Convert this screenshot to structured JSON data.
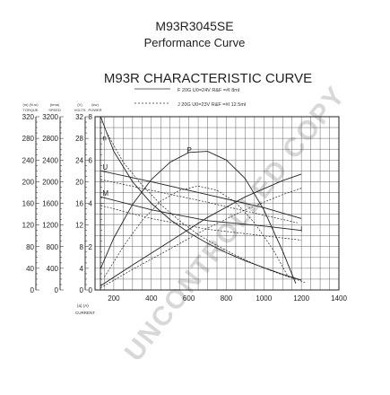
{
  "header": {
    "part_number": "M93R3045SE",
    "subtitle": "Performance Curve"
  },
  "chart_data": {
    "type": "line",
    "title": "M93R CHARACTERISTIC CURVE",
    "legend": [
      {
        "style": "solid",
        "text": "F  20G    U0=24V    R&F  =#I  8mI"
      },
      {
        "style": "dashed",
        "text": "J  20G    U0=23V    R&F  =#I  12.5mI"
      }
    ],
    "x_axis": {
      "label_top": "(a)  (A)",
      "label_bottom": "CURRENT",
      "range": [
        100,
        1400
      ],
      "ticks": [
        200,
        400,
        600,
        800,
        1000,
        1200,
        1400
      ],
      "tick_labels": [
        "200",
        "400",
        "600",
        "800",
        "1000",
        "1200",
        "1400"
      ]
    },
    "right_axis": {
      "range": [
        0,
        8
      ],
      "ticks": [
        0,
        2,
        4,
        6,
        8
      ],
      "tick_labels": [
        "0",
        "2",
        "4",
        "6",
        "8"
      ]
    },
    "left_axes": [
      {
        "id": "torque",
        "header": "(m)  (N.m)",
        "label": "TORQUE",
        "range": [
          0,
          320
        ],
        "ticks": [
          0,
          40,
          80,
          120,
          160,
          200,
          240,
          280,
          320
        ],
        "tick_labels": [
          "0",
          "40",
          "80",
          "120",
          "160",
          "200",
          "240",
          "280",
          "320"
        ]
      },
      {
        "id": "speed",
        "header": "(bma)",
        "label": "SPEED",
        "range": [
          0,
          3200
        ],
        "ticks": [
          0,
          400,
          800,
          1200,
          1600,
          2000,
          2400,
          2800,
          3200
        ],
        "tick_labels": [
          "0",
          "400",
          "800",
          "1200",
          "1600",
          "2000",
          "2400",
          "2800",
          "3200"
        ]
      },
      {
        "id": "volts",
        "header": "(V)",
        "label": "VOLTS",
        "range": [
          0,
          32
        ],
        "ticks": [
          0,
          4,
          8,
          12,
          16,
          20,
          24,
          28,
          32
        ],
        "tick_labels": [
          "0",
          "4",
          "8",
          "12",
          "16",
          "20",
          "24",
          "28",
          "32"
        ]
      },
      {
        "id": "power",
        "header": "(kw)",
        "label": "POWER",
        "range": [
          0,
          32
        ],
        "ticks": [
          0,
          4,
          8,
          12,
          16,
          20,
          24,
          28,
          32
        ],
        "tick_labels": [
          "0",
          "4",
          "8",
          "12",
          "16",
          "20",
          "24",
          "28",
          "32"
        ]
      }
    ],
    "series_labels": [
      {
        "text": "n",
        "x": 140,
        "y": 6.9
      },
      {
        "text": "P",
        "x": 590,
        "y": 6.35
      },
      {
        "text": "U",
        "x": 140,
        "y": 5.55
      },
      {
        "text": "M",
        "x": 140,
        "y": 4.35
      },
      {
        "text": "I",
        "x": 1195,
        "y": 2.7
      }
    ],
    "series": [
      {
        "key": "n",
        "style": "solid",
        "points": [
          [
            130,
            8.0
          ],
          [
            200,
            6.4
          ],
          [
            300,
            5.0
          ],
          [
            400,
            4.0
          ],
          [
            500,
            3.25
          ],
          [
            600,
            2.65
          ],
          [
            700,
            2.15
          ],
          [
            800,
            1.72
          ],
          [
            900,
            1.35
          ],
          [
            1000,
            1.03
          ],
          [
            1100,
            0.72
          ],
          [
            1200,
            0.45
          ]
        ]
      },
      {
        "key": "n",
        "style": "dashed",
        "points": [
          [
            160,
            7.3
          ],
          [
            250,
            5.9
          ],
          [
            350,
            4.85
          ],
          [
            450,
            3.95
          ],
          [
            550,
            3.2
          ],
          [
            650,
            2.55
          ],
          [
            750,
            2.05
          ],
          [
            850,
            1.6
          ],
          [
            950,
            1.2
          ],
          [
            1050,
            0.85
          ],
          [
            1150,
            0.55
          ],
          [
            1220,
            0.35
          ]
        ]
      },
      {
        "key": "P",
        "style": "solid",
        "points": [
          [
            130,
            1.0
          ],
          [
            200,
            2.4
          ],
          [
            300,
            3.95
          ],
          [
            400,
            5.1
          ],
          [
            500,
            5.9
          ],
          [
            600,
            6.35
          ],
          [
            700,
            6.4
          ],
          [
            800,
            6.0
          ],
          [
            900,
            5.15
          ],
          [
            1000,
            3.7
          ],
          [
            1100,
            1.8
          ],
          [
            1170,
            0.3
          ]
        ]
      },
      {
        "key": "P",
        "style": "dashed",
        "points": [
          [
            150,
            0.6
          ],
          [
            250,
            2.0
          ],
          [
            350,
            3.2
          ],
          [
            450,
            4.1
          ],
          [
            550,
            4.6
          ],
          [
            650,
            4.8
          ],
          [
            750,
            4.6
          ],
          [
            850,
            4.05
          ],
          [
            950,
            3.1
          ],
          [
            1050,
            1.85
          ],
          [
            1130,
            0.6
          ]
        ]
      },
      {
        "key": "U",
        "style": "solid",
        "points": [
          [
            130,
            5.5
          ],
          [
            400,
            5.0
          ],
          [
            700,
            4.4
          ],
          [
            1000,
            3.8
          ],
          [
            1200,
            3.3
          ]
        ]
      },
      {
        "key": "U",
        "style": "dashed",
        "points": [
          [
            130,
            5.1
          ],
          [
            400,
            4.6
          ],
          [
            700,
            4.05
          ],
          [
            1000,
            3.45
          ],
          [
            1180,
            3.1
          ]
        ]
      },
      {
        "key": "M",
        "style": "solid",
        "points": [
          [
            130,
            0.2
          ],
          [
            300,
            1.15
          ],
          [
            500,
            2.25
          ],
          [
            700,
            3.35
          ],
          [
            900,
            4.3
          ],
          [
            1100,
            5.05
          ],
          [
            1200,
            5.35
          ]
        ]
      },
      {
        "key": "M",
        "style": "dashed",
        "points": [
          [
            130,
            0.1
          ],
          [
            300,
            0.95
          ],
          [
            500,
            1.9
          ],
          [
            700,
            2.85
          ],
          [
            900,
            3.7
          ],
          [
            1100,
            4.4
          ],
          [
            1200,
            4.7
          ]
        ]
      },
      {
        "key": "I",
        "style": "solid",
        "points": [
          [
            130,
            4.3
          ],
          [
            400,
            3.7
          ],
          [
            700,
            3.2
          ],
          [
            1000,
            2.95
          ],
          [
            1200,
            2.75
          ]
        ]
      },
      {
        "key": "I",
        "style": "dashed",
        "points": [
          [
            130,
            3.9
          ],
          [
            400,
            3.3
          ],
          [
            700,
            2.8
          ],
          [
            1000,
            2.5
          ],
          [
            1200,
            2.3
          ]
        ]
      }
    ]
  },
  "watermark": "UNCONTROLLED COPY"
}
